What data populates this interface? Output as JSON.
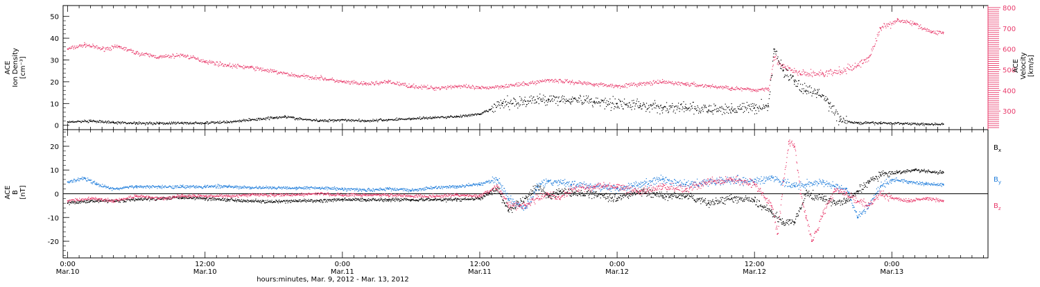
{
  "chart_data": [
    {
      "type": "scatter",
      "panel": "top",
      "ylabel_lines": [
        "ACE",
        "Ion Density",
        "[cm⁻³]"
      ],
      "ylabel_right_lines": [
        "ACE",
        "Velocity",
        "[km/s]"
      ],
      "ylim": [
        -2,
        55
      ],
      "ylim_right": [
        210,
        810
      ],
      "yticks": [
        0,
        10,
        20,
        30,
        40,
        50
      ],
      "yticks_right": [
        300,
        400,
        500,
        600,
        700,
        800
      ],
      "colors": {
        "density": "#000000",
        "velocity": "#e8396a"
      },
      "series": [
        {
          "axis": "left",
          "color": "density",
          "points": [
            [
              0,
              1.5
            ],
            [
              2,
              1.8
            ],
            [
              4,
              1.2
            ],
            [
              6,
              1
            ],
            [
              8,
              0.9
            ],
            [
              10,
              1
            ],
            [
              12,
              1
            ],
            [
              14,
              1.5
            ],
            [
              16,
              2.5
            ],
            [
              18,
              3.5
            ],
            [
              19,
              4
            ],
            [
              20,
              3
            ],
            [
              22,
              2
            ],
            [
              24,
              2.5
            ],
            [
              26,
              2
            ],
            [
              28,
              2.5
            ],
            [
              30,
              3
            ],
            [
              32,
              3.5
            ],
            [
              34,
              4
            ],
            [
              36,
              5
            ],
            [
              38,
              10
            ],
            [
              40,
              11
            ],
            [
              42,
              12
            ],
            [
              44,
              12
            ],
            [
              46,
              11
            ],
            [
              48,
              10
            ],
            [
              50,
              9
            ],
            [
              52,
              8
            ],
            [
              54,
              8
            ],
            [
              56,
              7
            ],
            [
              58,
              7.5
            ],
            [
              60,
              8
            ],
            [
              61.2,
              9
            ],
            [
              61.7,
              35
            ],
            [
              62.5,
              25
            ],
            [
              63.5,
              20
            ],
            [
              64.5,
              16
            ],
            [
              65.5,
              15
            ],
            [
              66.5,
              10
            ],
            [
              67.5,
              2
            ],
            [
              69,
              1
            ],
            [
              71,
              1
            ],
            [
              73,
              0.8
            ],
            [
              75,
              0.5
            ],
            [
              76.5,
              0.5
            ]
          ]
        },
        {
          "axis": "right",
          "color": "velocity",
          "points": [
            [
              0,
              600
            ],
            [
              1.5,
              620
            ],
            [
              3,
              600
            ],
            [
              4.5,
              610
            ],
            [
              6,
              580
            ],
            [
              8,
              560
            ],
            [
              10,
              570
            ],
            [
              12,
              540
            ],
            [
              14,
              520
            ],
            [
              16,
              510
            ],
            [
              18,
              490
            ],
            [
              20,
              470
            ],
            [
              22,
              460
            ],
            [
              24,
              440
            ],
            [
              26,
              430
            ],
            [
              28,
              440
            ],
            [
              30,
              420
            ],
            [
              32,
              410
            ],
            [
              34,
              420
            ],
            [
              36,
              410
            ],
            [
              38,
              420
            ],
            [
              40,
              430
            ],
            [
              42,
              450
            ],
            [
              44,
              440
            ],
            [
              46,
              430
            ],
            [
              48,
              420
            ],
            [
              50,
              430
            ],
            [
              52,
              440
            ],
            [
              54,
              430
            ],
            [
              56,
              420
            ],
            [
              58,
              410
            ],
            [
              60,
              400
            ],
            [
              61.2,
              410
            ],
            [
              61.7,
              560
            ],
            [
              62.5,
              510
            ],
            [
              64,
              480
            ],
            [
              66,
              480
            ],
            [
              67.5,
              490
            ],
            [
              69,
              520
            ],
            [
              70,
              560
            ],
            [
              71,
              700
            ],
            [
              72.5,
              740
            ],
            [
              74,
              720
            ],
            [
              75.5,
              680
            ],
            [
              76.5,
              680
            ]
          ]
        }
      ]
    },
    {
      "type": "scatter",
      "panel": "bottom",
      "ylabel_lines": [
        "ACE",
        "B",
        "[nT]"
      ],
      "ylim": [
        -27,
        27
      ],
      "yticks": [
        -20,
        -10,
        0,
        10,
        20
      ],
      "zero_line": true,
      "series": [
        {
          "name": "Bx",
          "label": "B",
          "sub": "x",
          "color": "#000000",
          "points": [
            [
              0,
              -4
            ],
            [
              2,
              -3
            ],
            [
              4,
              -3
            ],
            [
              6,
              -2.5
            ],
            [
              8,
              -2
            ],
            [
              10,
              -1.5
            ],
            [
              12,
              -2
            ],
            [
              14,
              -2.5
            ],
            [
              16,
              -3
            ],
            [
              18,
              -3.5
            ],
            [
              20,
              -3
            ],
            [
              22,
              -3
            ],
            [
              24,
              -2.5
            ],
            [
              26,
              -2.5
            ],
            [
              28,
              -2.5
            ],
            [
              30,
              -2.5
            ],
            [
              32,
              -2.5
            ],
            [
              34,
              -2.5
            ],
            [
              36,
              -2
            ],
            [
              37.5,
              2
            ],
            [
              38.5,
              -7
            ],
            [
              40,
              -2
            ],
            [
              41,
              3
            ],
            [
              42,
              -1
            ],
            [
              43,
              1
            ],
            [
              44,
              0
            ],
            [
              46,
              0
            ],
            [
              48,
              -2
            ],
            [
              50,
              1
            ],
            [
              52,
              -1
            ],
            [
              54,
              -1
            ],
            [
              56,
              -4
            ],
            [
              58,
              -2
            ],
            [
              60,
              -3
            ],
            [
              61.5,
              -8
            ],
            [
              62.5,
              -12
            ],
            [
              63.5,
              -12
            ],
            [
              64.5,
              0
            ],
            [
              66,
              -2
            ],
            [
              67,
              -4
            ],
            [
              68,
              -3
            ],
            [
              69,
              1
            ],
            [
              70,
              5
            ],
            [
              71,
              8
            ],
            [
              72.5,
              9
            ],
            [
              74,
              10
            ],
            [
              75.5,
              9
            ],
            [
              76.5,
              9
            ]
          ]
        },
        {
          "name": "By",
          "label": "B",
          "sub": "y",
          "color": "#1f7ddb",
          "points": [
            [
              0,
              5
            ],
            [
              1.5,
              6.5
            ],
            [
              2.5,
              4
            ],
            [
              4,
              2
            ],
            [
              6,
              3
            ],
            [
              8,
              3
            ],
            [
              10,
              3
            ],
            [
              12,
              3
            ],
            [
              14,
              3
            ],
            [
              16,
              2.5
            ],
            [
              18,
              2.5
            ],
            [
              20,
              2.5
            ],
            [
              22,
              2.5
            ],
            [
              24,
              2
            ],
            [
              26,
              1.5
            ],
            [
              28,
              2
            ],
            [
              30,
              1.5
            ],
            [
              32,
              2.5
            ],
            [
              34,
              3
            ],
            [
              36,
              4
            ],
            [
              37.5,
              6
            ],
            [
              38.5,
              -2
            ],
            [
              39.5,
              -5
            ],
            [
              40,
              -6
            ],
            [
              41,
              3
            ],
            [
              42,
              5
            ],
            [
              43,
              5
            ],
            [
              44,
              4
            ],
            [
              46,
              3
            ],
            [
              48,
              2
            ],
            [
              50,
              4
            ],
            [
              52,
              6
            ],
            [
              54,
              4
            ],
            [
              56,
              5
            ],
            [
              58,
              6
            ],
            [
              60,
              5
            ],
            [
              61.5,
              7
            ],
            [
              62.5,
              5
            ],
            [
              63.5,
              3
            ],
            [
              64.5,
              4
            ],
            [
              66,
              5
            ],
            [
              67,
              3
            ],
            [
              68,
              2
            ],
            [
              69,
              -10
            ],
            [
              70,
              -5
            ],
            [
              71,
              3
            ],
            [
              72,
              6
            ],
            [
              73.5,
              5
            ],
            [
              75,
              4
            ],
            [
              76.5,
              4
            ]
          ]
        },
        {
          "name": "Bz",
          "label": "B",
          "sub": "z",
          "color": "#e8396a",
          "points": [
            [
              0,
              -3
            ],
            [
              2,
              -2
            ],
            [
              4,
              -3
            ],
            [
              6,
              -1
            ],
            [
              8,
              -2
            ],
            [
              10,
              -1
            ],
            [
              12,
              -1
            ],
            [
              14,
              -1
            ],
            [
              16,
              -0.5
            ],
            [
              18,
              -0.5
            ],
            [
              20,
              -0.5
            ],
            [
              22,
              0
            ],
            [
              24,
              -0.5
            ],
            [
              26,
              -0.5
            ],
            [
              28,
              -0.5
            ],
            [
              30,
              -1
            ],
            [
              32,
              -1
            ],
            [
              34,
              -0.5
            ],
            [
              36,
              -1
            ],
            [
              37.5,
              3
            ],
            [
              38.5,
              -5
            ],
            [
              40,
              -5
            ],
            [
              41,
              -2
            ],
            [
              42,
              0
            ],
            [
              43,
              -2
            ],
            [
              44,
              2
            ],
            [
              46,
              3
            ],
            [
              48,
              3
            ],
            [
              50,
              1
            ],
            [
              52,
              3
            ],
            [
              54,
              2
            ],
            [
              56,
              5
            ],
            [
              58,
              6
            ],
            [
              60,
              4
            ],
            [
              61.5,
              -5
            ],
            [
              62,
              -17
            ],
            [
              62.5,
              5
            ],
            [
              63,
              22
            ],
            [
              63.5,
              20
            ],
            [
              64,
              0
            ],
            [
              64.5,
              -10
            ],
            [
              65,
              -20
            ],
            [
              66,
              -8
            ],
            [
              67,
              2
            ],
            [
              68,
              0
            ],
            [
              69,
              -3
            ],
            [
              70,
              -5
            ],
            [
              71,
              0
            ],
            [
              72,
              -2
            ],
            [
              73.5,
              -3
            ],
            [
              75,
              -2
            ],
            [
              76.5,
              -3
            ]
          ]
        }
      ]
    }
  ],
  "x_axis": {
    "range_hours": [
      -0.4,
      80.4
    ],
    "major_ticks": [
      {
        "h": 0,
        "time": "0:00",
        "date": "Mar.10"
      },
      {
        "h": 12,
        "time": "12:00",
        "date": "Mar.10"
      },
      {
        "h": 24,
        "time": "0:00",
        "date": "Mar.11"
      },
      {
        "h": 36,
        "time": "12:00",
        "date": "Mar.11"
      },
      {
        "h": 48,
        "time": "0:00",
        "date": "Mar.12"
      },
      {
        "h": 60,
        "time": "12:00",
        "date": "Mar.12"
      },
      {
        "h": 72,
        "time": "0:00",
        "date": "Mar.13"
      }
    ],
    "title": "hours:minutes, Mar. 9, 2012 - Mar. 13, 2012"
  }
}
